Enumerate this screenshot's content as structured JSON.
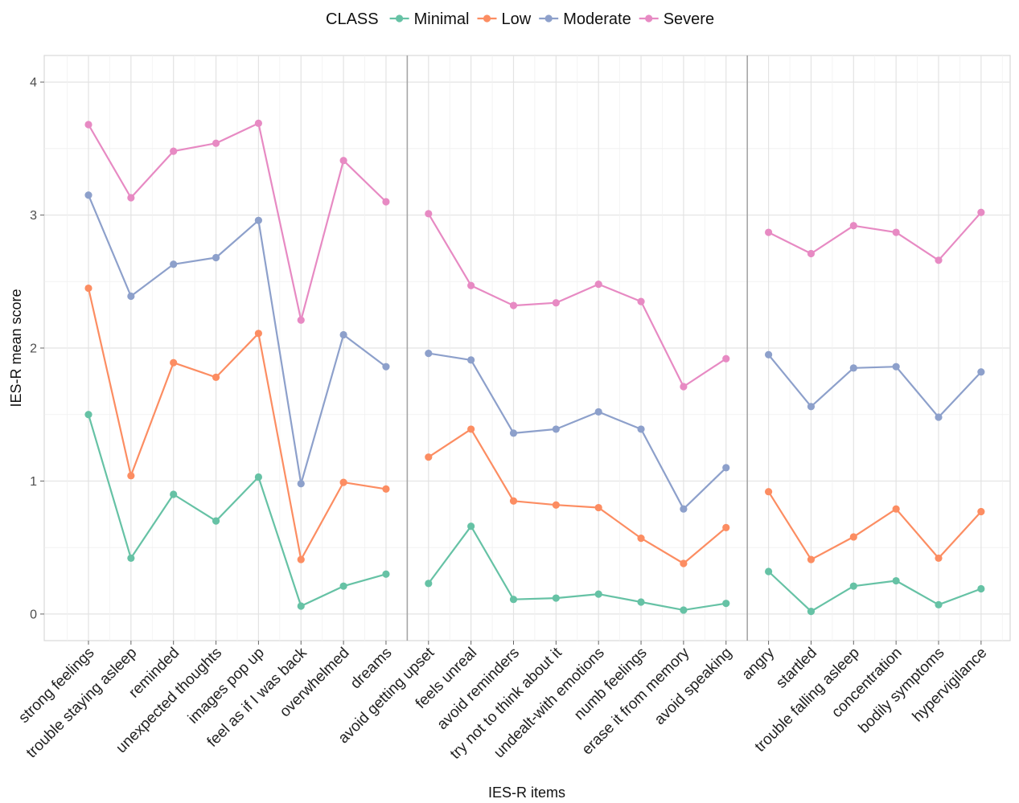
{
  "chart_data": {
    "type": "line",
    "xlabel": "IES-R items",
    "ylabel": "IES-R mean score",
    "ylim": [
      -0.2,
      4.2
    ],
    "yticks": [
      0,
      1,
      2,
      3,
      4
    ],
    "grid": true,
    "legend_position": "top",
    "legend_title": "CLASS",
    "categories": [
      "strong feelings",
      "trouble staying asleep",
      "reminded",
      "unexpected thoughts",
      "images pop up",
      "feel as if I was back",
      "overwhelmed",
      "dreams",
      "avoid getting upset",
      "feels unreal",
      "avoid reminders",
      "try not to think about it",
      "undealt-with emotions",
      "numb feelings",
      "erase it from memory",
      "avoid speaking",
      "angry",
      "startled",
      "trouble falling asleep",
      "concentration",
      "bodily symptoms",
      "hypervigilance"
    ],
    "panels": [
      [
        0,
        7
      ],
      [
        8,
        15
      ],
      [
        16,
        21
      ]
    ],
    "series": [
      {
        "name": "Minimal",
        "color": "#66c2a5",
        "values": [
          1.5,
          0.42,
          0.9,
          0.7,
          1.03,
          0.06,
          0.21,
          0.3,
          0.23,
          0.66,
          0.11,
          0.12,
          0.15,
          0.09,
          0.03,
          0.08,
          0.32,
          0.02,
          0.21,
          0.25,
          0.07,
          0.19
        ]
      },
      {
        "name": "Low",
        "color": "#fc8d62",
        "values": [
          2.45,
          1.04,
          1.89,
          1.78,
          2.11,
          0.41,
          0.99,
          0.94,
          1.18,
          1.39,
          0.85,
          0.82,
          0.8,
          0.57,
          0.38,
          0.65,
          0.92,
          0.41,
          0.58,
          0.79,
          0.42,
          0.77
        ]
      },
      {
        "name": "Moderate",
        "color": "#8da0cb",
        "values": [
          3.15,
          2.39,
          2.63,
          2.68,
          2.96,
          0.98,
          2.1,
          1.86,
          1.96,
          1.91,
          1.36,
          1.39,
          1.52,
          1.39,
          0.79,
          1.1,
          1.95,
          1.56,
          1.85,
          1.86,
          1.48,
          1.82
        ]
      },
      {
        "name": "Severe",
        "color": "#e78ac3",
        "values": [
          3.68,
          3.13,
          3.48,
          3.54,
          3.69,
          2.21,
          3.41,
          3.1,
          3.01,
          2.47,
          2.32,
          2.34,
          2.48,
          2.35,
          1.71,
          1.92,
          2.87,
          2.71,
          2.92,
          2.87,
          2.66,
          3.02
        ]
      }
    ]
  }
}
